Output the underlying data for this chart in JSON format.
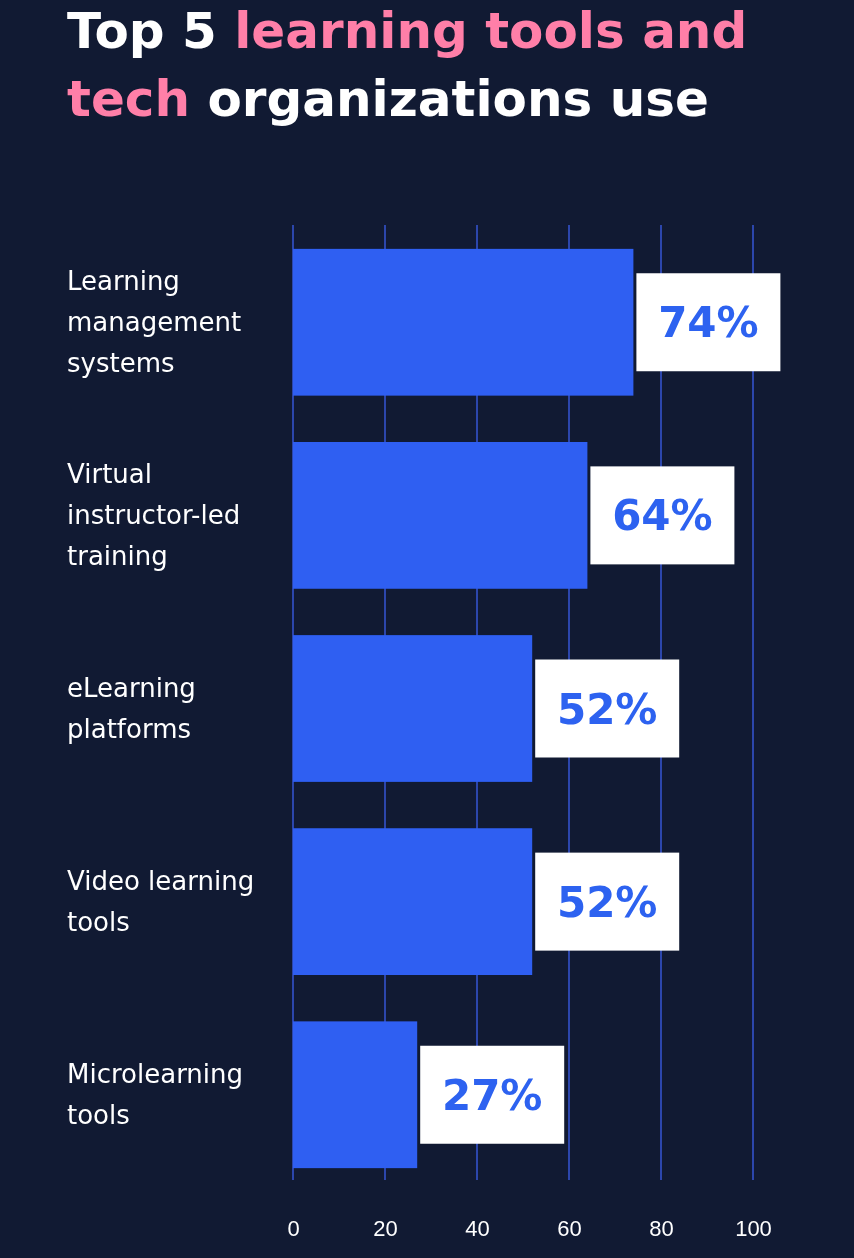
{
  "chart_data": {
    "type": "bar",
    "orientation": "horizontal",
    "title": "Top 5 learning tools and tech organizations use",
    "categories": [
      "Learning management systems",
      "Virtual instructor-led training",
      "eLearning platforms",
      "Video learning tools",
      "Microlearning tools"
    ],
    "values": [
      74,
      64,
      52,
      52,
      27
    ],
    "value_labels": [
      "74%",
      "64%",
      "52%",
      "52%",
      "27%"
    ],
    "color": "#2f5ff2",
    "xlim": [
      0,
      100
    ],
    "xticks": [
      0,
      20,
      40,
      60,
      80,
      100
    ],
    "grid": "x"
  }
}
